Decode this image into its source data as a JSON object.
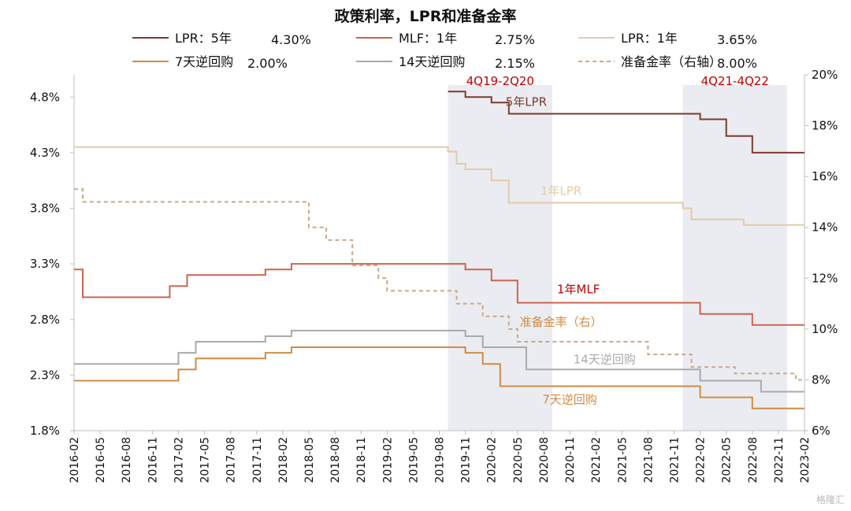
{
  "chart_data": {
    "type": "line",
    "title": "政策利率，LPR和准备金率",
    "x_dates": [
      "2016-02",
      "2016-03",
      "2016-04",
      "2016-05",
      "2016-06",
      "2016-07",
      "2016-08",
      "2016-09",
      "2016-10",
      "2016-11",
      "2016-12",
      "2017-01",
      "2017-02",
      "2017-03",
      "2017-04",
      "2017-05",
      "2017-06",
      "2017-07",
      "2017-08",
      "2017-09",
      "2017-10",
      "2017-11",
      "2017-12",
      "2018-01",
      "2018-02",
      "2018-03",
      "2018-04",
      "2018-05",
      "2018-06",
      "2018-07",
      "2018-08",
      "2018-09",
      "2018-10",
      "2018-11",
      "2018-12",
      "2019-01",
      "2019-02",
      "2019-03",
      "2019-04",
      "2019-05",
      "2019-06",
      "2019-07",
      "2019-08",
      "2019-09",
      "2019-10",
      "2019-11",
      "2019-12",
      "2020-01",
      "2020-02",
      "2020-03",
      "2020-04",
      "2020-05",
      "2020-06",
      "2020-07",
      "2020-08",
      "2020-09",
      "2020-10",
      "2020-11",
      "2020-12",
      "2021-01",
      "2021-02",
      "2021-03",
      "2021-04",
      "2021-05",
      "2021-06",
      "2021-07",
      "2021-08",
      "2021-09",
      "2021-10",
      "2021-11",
      "2021-12",
      "2022-01",
      "2022-02",
      "2022-03",
      "2022-04",
      "2022-05",
      "2022-06",
      "2022-07",
      "2022-08",
      "2022-09",
      "2022-10",
      "2022-11",
      "2022-12",
      "2023-01",
      "2023-02"
    ],
    "x_tick_labels": [
      "2016-02",
      "2016-05",
      "2016-08",
      "2016-11",
      "2017-02",
      "2017-05",
      "2017-08",
      "2017-11",
      "2018-02",
      "2018-05",
      "2018-08",
      "2018-11",
      "2019-02",
      "2019-05",
      "2019-08",
      "2019-11",
      "2020-02",
      "2020-05",
      "2020-08",
      "2020-11",
      "2021-02",
      "2021-05",
      "2021-08",
      "2021-11",
      "2022-02",
      "2022-05",
      "2022-08",
      "2022-11",
      "2023-02"
    ],
    "y_left": {
      "ticks": [
        "1.8%",
        "2.3%",
        "2.8%",
        "3.3%",
        "3.8%",
        "4.3%",
        "4.8%"
      ],
      "range": [
        1.8,
        5.0
      ]
    },
    "y_right": {
      "ticks": [
        "6%",
        "8%",
        "10%",
        "12%",
        "14%",
        "16%",
        "18%",
        "20%"
      ],
      "range": [
        6,
        20
      ]
    },
    "shaded_regions": [
      {
        "label": "4Q19-2Q20",
        "start": "2019-09",
        "end": "2020-09"
      },
      {
        "label": "4Q21-4Q22",
        "start": "2021-12",
        "end": "2022-12"
      }
    ],
    "series": [
      {
        "name": "LPR：5年",
        "legend_value": "4.30%",
        "axis": "left",
        "color": "#7a3b2e",
        "dash": "",
        "inline_label": "5年LPR",
        "values": [
          null,
          null,
          null,
          null,
          null,
          null,
          null,
          null,
          null,
          null,
          null,
          null,
          null,
          null,
          null,
          null,
          null,
          null,
          null,
          null,
          null,
          null,
          null,
          null,
          null,
          null,
          null,
          null,
          null,
          null,
          null,
          null,
          null,
          null,
          null,
          null,
          null,
          null,
          null,
          null,
          null,
          null,
          null,
          4.85,
          4.85,
          4.8,
          4.8,
          4.8,
          4.75,
          4.75,
          4.65,
          4.65,
          4.65,
          4.65,
          4.65,
          4.65,
          4.65,
          4.65,
          4.65,
          4.65,
          4.65,
          4.65,
          4.65,
          4.65,
          4.65,
          4.65,
          4.65,
          4.65,
          4.65,
          4.65,
          4.65,
          4.65,
          4.6,
          4.6,
          4.6,
          4.45,
          4.45,
          4.45,
          4.3,
          4.3,
          4.3,
          4.3,
          4.3,
          4.3,
          4.3
        ]
      },
      {
        "name": "MLF：1年",
        "legend_value": "2.75%",
        "axis": "left",
        "color": "#c9654f",
        "dash": "",
        "inline_label": "1年MLF",
        "values": [
          3.25,
          3.0,
          3.0,
          3.0,
          3.0,
          3.0,
          3.0,
          3.0,
          3.0,
          3.0,
          3.0,
          3.1,
          3.1,
          3.2,
          3.2,
          3.2,
          3.2,
          3.2,
          3.2,
          3.2,
          3.2,
          3.2,
          3.25,
          3.25,
          3.25,
          3.3,
          3.3,
          3.3,
          3.3,
          3.3,
          3.3,
          3.3,
          3.3,
          3.3,
          3.3,
          3.3,
          3.3,
          3.3,
          3.3,
          3.3,
          3.3,
          3.3,
          3.3,
          3.3,
          3.3,
          3.25,
          3.25,
          3.25,
          3.15,
          3.15,
          3.15,
          2.95,
          2.95,
          2.95,
          2.95,
          2.95,
          2.95,
          2.95,
          2.95,
          2.95,
          2.95,
          2.95,
          2.95,
          2.95,
          2.95,
          2.95,
          2.95,
          2.95,
          2.95,
          2.95,
          2.95,
          2.95,
          2.85,
          2.85,
          2.85,
          2.85,
          2.85,
          2.85,
          2.75,
          2.75,
          2.75,
          2.75,
          2.75,
          2.75,
          2.75
        ]
      },
      {
        "name": "LPR：1年",
        "legend_value": "3.65%",
        "axis": "left",
        "color": "#e3cbab",
        "dash": "",
        "inline_label": "1年LPR",
        "values": [
          4.35,
          4.35,
          4.35,
          4.35,
          4.35,
          4.35,
          4.35,
          4.35,
          4.35,
          4.35,
          4.35,
          4.35,
          4.35,
          4.35,
          4.35,
          4.35,
          4.35,
          4.35,
          4.35,
          4.35,
          4.35,
          4.35,
          4.35,
          4.35,
          4.35,
          4.35,
          4.35,
          4.35,
          4.35,
          4.35,
          4.35,
          4.35,
          4.35,
          4.35,
          4.35,
          4.35,
          4.35,
          4.35,
          4.35,
          4.35,
          4.35,
          4.35,
          4.35,
          4.31,
          4.2,
          4.15,
          4.15,
          4.15,
          4.05,
          4.05,
          3.85,
          3.85,
          3.85,
          3.85,
          3.85,
          3.85,
          3.85,
          3.85,
          3.85,
          3.85,
          3.85,
          3.85,
          3.85,
          3.85,
          3.85,
          3.85,
          3.85,
          3.85,
          3.85,
          3.85,
          3.8,
          3.7,
          3.7,
          3.7,
          3.7,
          3.7,
          3.7,
          3.65,
          3.65,
          3.65,
          3.65,
          3.65,
          3.65,
          3.65,
          3.65
        ]
      },
      {
        "name": "7天逆回购",
        "legend_value": "2.00%",
        "axis": "left",
        "color": "#d08c46",
        "dash": "",
        "inline_label": "7天逆回购",
        "values": [
          2.25,
          2.25,
          2.25,
          2.25,
          2.25,
          2.25,
          2.25,
          2.25,
          2.25,
          2.25,
          2.25,
          2.25,
          2.35,
          2.35,
          2.45,
          2.45,
          2.45,
          2.45,
          2.45,
          2.45,
          2.45,
          2.45,
          2.5,
          2.5,
          2.5,
          2.55,
          2.55,
          2.55,
          2.55,
          2.55,
          2.55,
          2.55,
          2.55,
          2.55,
          2.55,
          2.55,
          2.55,
          2.55,
          2.55,
          2.55,
          2.55,
          2.55,
          2.55,
          2.55,
          2.55,
          2.5,
          2.5,
          2.4,
          2.4,
          2.2,
          2.2,
          2.2,
          2.2,
          2.2,
          2.2,
          2.2,
          2.2,
          2.2,
          2.2,
          2.2,
          2.2,
          2.2,
          2.2,
          2.2,
          2.2,
          2.2,
          2.2,
          2.2,
          2.2,
          2.2,
          2.2,
          2.2,
          2.1,
          2.1,
          2.1,
          2.1,
          2.1,
          2.1,
          2.0,
          2.0,
          2.0,
          2.0,
          2.0,
          2.0,
          2.0
        ]
      },
      {
        "name": "14天逆回购",
        "legend_value": "2.15%",
        "axis": "left",
        "color": "#a9a9ae",
        "dash": "",
        "inline_label": "14天逆回购",
        "values": [
          2.4,
          2.4,
          2.4,
          2.4,
          2.4,
          2.4,
          2.4,
          2.4,
          2.4,
          2.4,
          2.4,
          2.4,
          2.5,
          2.5,
          2.6,
          2.6,
          2.6,
          2.6,
          2.6,
          2.6,
          2.6,
          2.6,
          2.65,
          2.65,
          2.65,
          2.7,
          2.7,
          2.7,
          2.7,
          2.7,
          2.7,
          2.7,
          2.7,
          2.7,
          2.7,
          2.7,
          2.7,
          2.7,
          2.7,
          2.7,
          2.7,
          2.7,
          2.7,
          2.7,
          2.7,
          2.65,
          2.65,
          2.55,
          2.55,
          2.55,
          2.55,
          2.55,
          2.35,
          2.35,
          2.35,
          2.35,
          2.35,
          2.35,
          2.35,
          2.35,
          2.35,
          2.35,
          2.35,
          2.35,
          2.35,
          2.35,
          2.35,
          2.35,
          2.35,
          2.35,
          2.35,
          2.35,
          2.25,
          2.25,
          2.25,
          2.25,
          2.25,
          2.25,
          2.25,
          2.15,
          2.15,
          2.15,
          2.15,
          2.15,
          2.15
        ]
      },
      {
        "name": "准备金率（右轴）",
        "legend_value": "8.00%",
        "axis": "right",
        "color": "#c9a98a",
        "dash": "5,4",
        "inline_label": "准备金率（右）",
        "values": [
          15.5,
          15.0,
          15.0,
          15.0,
          15.0,
          15.0,
          15.0,
          15.0,
          15.0,
          15.0,
          15.0,
          15.0,
          15.0,
          15.0,
          15.0,
          15.0,
          15.0,
          15.0,
          15.0,
          15.0,
          15.0,
          15.0,
          15.0,
          15.0,
          15.0,
          15.0,
          15.0,
          14.0,
          14.0,
          13.5,
          13.5,
          13.5,
          12.5,
          12.5,
          12.5,
          12.0,
          11.5,
          11.5,
          11.5,
          11.5,
          11.5,
          11.5,
          11.5,
          11.5,
          11.0,
          11.0,
          11.0,
          10.5,
          10.5,
          10.5,
          10.0,
          9.5,
          9.5,
          9.5,
          9.5,
          9.5,
          9.5,
          9.5,
          9.5,
          9.5,
          9.5,
          9.5,
          9.5,
          9.5,
          9.5,
          9.5,
          9.0,
          9.0,
          9.0,
          9.0,
          9.0,
          8.5,
          8.5,
          8.5,
          8.5,
          8.5,
          8.25,
          8.25,
          8.25,
          8.25,
          8.25,
          8.25,
          8.25,
          8.0,
          8.0
        ]
      }
    ],
    "legend_placement": "top",
    "grid": false
  },
  "watermark": "格隆汇"
}
